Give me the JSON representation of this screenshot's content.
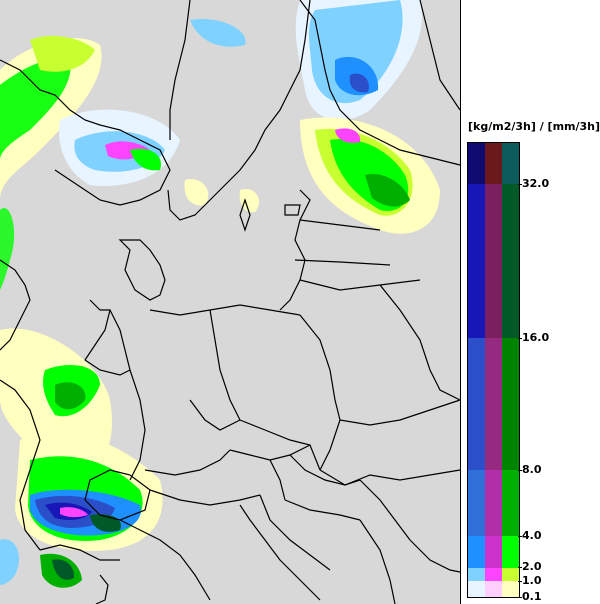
{
  "legend": {
    "unit_label": "[kg/m2/3h] / [mm/3h]",
    "ticks": [
      "32.0",
      "16.0",
      "8.0",
      "4.0",
      "2.0",
      "1.0",
      "0.1"
    ],
    "thresholds": [
      0.1,
      1.0,
      2.0,
      4.0,
      8.0,
      16.0,
      32.0
    ],
    "palettes": {
      "blue": [
        "#e8f4ff",
        "#7fd2ff",
        "#1e90ff",
        "#2f6fd8",
        "#2a4fc8",
        "#1717b8",
        "#0f0a70"
      ],
      "purple": [
        "#ffd0ff",
        "#ff44ff",
        "#cc33cc",
        "#b02ea8",
        "#952a80",
        "#7a2060",
        "#6a1a1a"
      ],
      "green": [
        "#ffffc0",
        "#c8ff30",
        "#00ff00",
        "#00b000",
        "#008400",
        "#005a28",
        "#0c5a5a"
      ]
    }
  },
  "map": {
    "land_color": "#d8d8d8",
    "sea_color": "#d8d8d8",
    "border_color": "#000000"
  }
}
